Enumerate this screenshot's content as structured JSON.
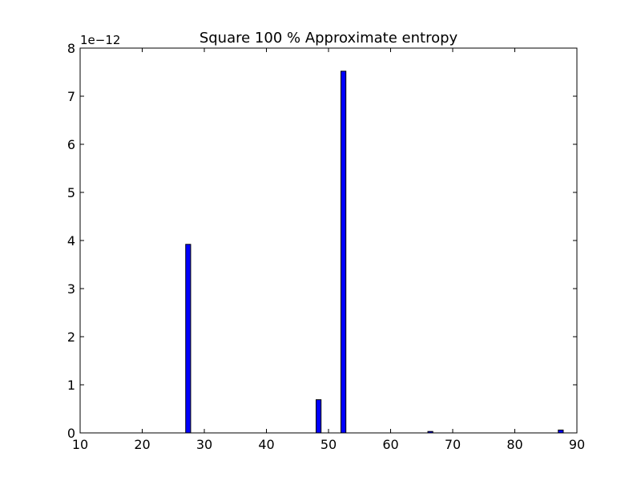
{
  "chart_data": {
    "type": "bar",
    "title": "Square 100 % Approximate entropy",
    "xlabel": "",
    "ylabel": "",
    "y_offset_label": "1e−12",
    "xlim": [
      10,
      90
    ],
    "ylim": [
      0,
      8
    ],
    "x_ticks": [
      "10",
      "20",
      "30",
      "40",
      "50",
      "60",
      "70",
      "80",
      "90"
    ],
    "y_ticks": [
      "0",
      "1",
      "2",
      "3",
      "4",
      "5",
      "6",
      "7",
      "8"
    ],
    "grid": false,
    "legend": "none",
    "bar_width": 0.8,
    "bar_color": "#0000ff",
    "series": [
      {
        "x": [
          27.4,
          48.4,
          52.4,
          66.4,
          87.4
        ],
        "values": [
          3.92,
          0.69,
          7.52,
          0.03,
          0.06
        ]
      }
    ]
  }
}
